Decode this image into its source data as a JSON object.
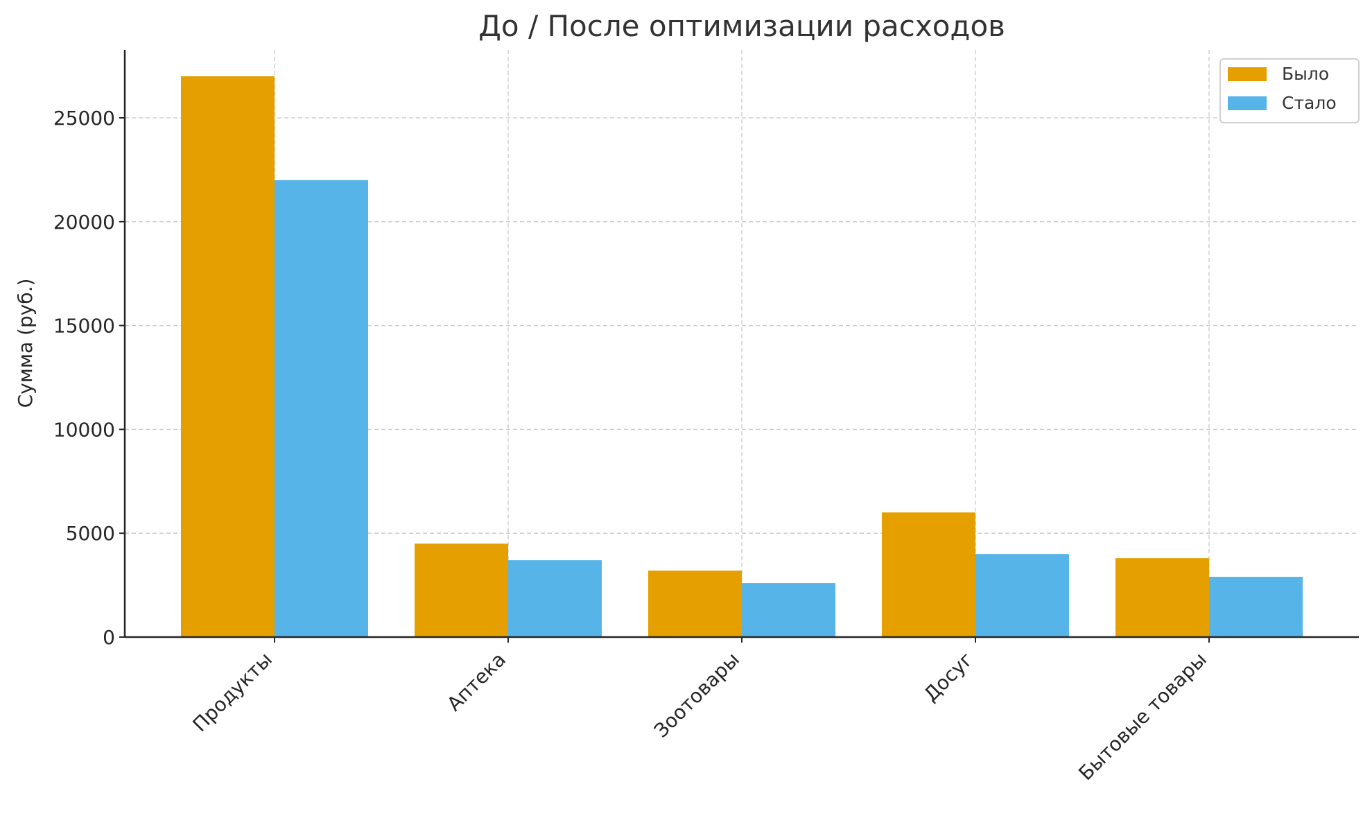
{
  "chart_data": {
    "type": "bar",
    "title": "До / После оптимизации расходов",
    "xlabel": "",
    "ylabel": "Сумма (руб.)",
    "categories": [
      "Продукты",
      "Аптека",
      "Зоотовары",
      "Досуг",
      "Бытовые товары"
    ],
    "series": [
      {
        "name": "Было",
        "color": "#E5A000",
        "values": [
          27000,
          4500,
          3200,
          6000,
          3800
        ]
      },
      {
        "name": "Стало",
        "color": "#56B4E9",
        "values": [
          22000,
          3700,
          2600,
          4000,
          2900
        ]
      }
    ],
    "yticks": [
      0,
      5000,
      10000,
      15000,
      20000,
      25000
    ],
    "ylim": [
      0,
      28350
    ],
    "grid": true,
    "legend_position": "upper right"
  }
}
